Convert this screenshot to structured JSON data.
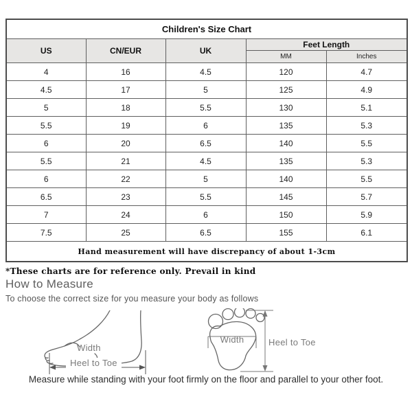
{
  "table": {
    "title": "Children's Size Chart",
    "columns": [
      "US",
      "CN/EUR",
      "UK"
    ],
    "feet_length_header": "Feet Length",
    "feet_length_sub": [
      "MM",
      "Inches"
    ],
    "rows": [
      [
        "4",
        "16",
        "4.5",
        "120",
        "4.7"
      ],
      [
        "4.5",
        "17",
        "5",
        "125",
        "4.9"
      ],
      [
        "5",
        "18",
        "5.5",
        "130",
        "5.1"
      ],
      [
        "5.5",
        "19",
        "6",
        "135",
        "5.3"
      ],
      [
        "6",
        "20",
        "6.5",
        "140",
        "5.5"
      ],
      [
        "5.5",
        "21",
        "4.5",
        "135",
        "5.3"
      ],
      [
        "6",
        "22",
        "5",
        "140",
        "5.5"
      ],
      [
        "6.5",
        "23",
        "5.5",
        "145",
        "5.7"
      ],
      [
        "7",
        "24",
        "6",
        "150",
        "5.9"
      ],
      [
        "7.5",
        "25",
        "6.5",
        "155",
        "6.1"
      ]
    ],
    "footer_note": "Hand measurement will have discrepancy of about 1-3cm"
  },
  "notes": {
    "reference_note": "*These charts are for reference only. Prevail in kind"
  },
  "measure": {
    "heading": "How to Measure",
    "subheading": "To choose the correct size for you measure your body as follows",
    "side_view_width_label": "Width",
    "side_view_heel_label": "Heel to Toe",
    "footprint_width_label": "Width",
    "footprint_heel_label": "Heel to Toe",
    "caption": "Measure while standing with your foot firmly on the floor and parallel to your other foot."
  },
  "colors": {
    "header_bg": "#e7e6e4",
    "table_border": "#4c4c4c",
    "diagram_line": "#666666",
    "diagram_label": "#7a7a7a"
  }
}
